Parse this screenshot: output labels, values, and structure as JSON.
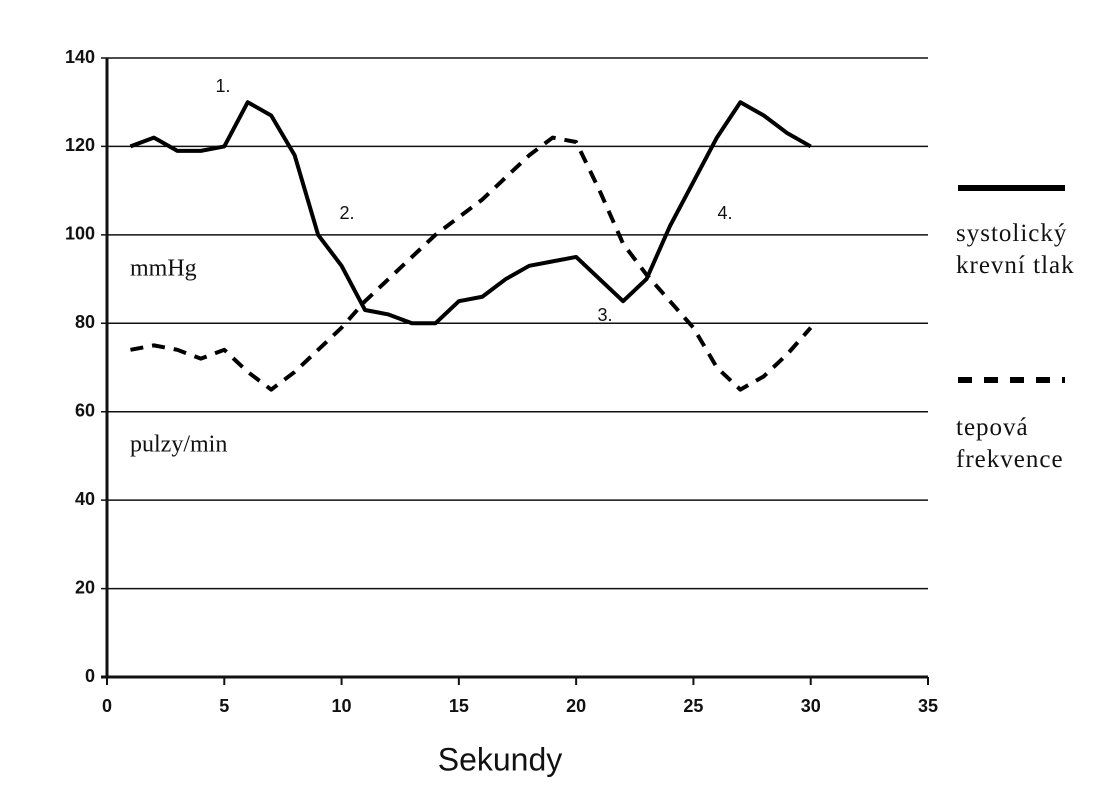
{
  "chart_data": {
    "type": "line",
    "x": [
      1,
      2,
      3,
      4,
      5,
      6,
      7,
      8,
      9,
      10,
      11,
      12,
      13,
      14,
      15,
      16,
      17,
      18,
      19,
      20,
      21,
      22,
      23,
      24,
      25,
      26,
      27,
      28,
      29,
      30
    ],
    "series": [
      {
        "name": "systolický krevní tlak",
        "color": "#000000",
        "line_style": "solid",
        "values": [
          120,
          122,
          119,
          119,
          120,
          130,
          127,
          118,
          100,
          93,
          83,
          82,
          80,
          80,
          85,
          86,
          90,
          93,
          94,
          95,
          90,
          85,
          90,
          102,
          112,
          122,
          130,
          127,
          123,
          120
        ]
      },
      {
        "name": "tepová frekvence",
        "color": "#000000",
        "line_style": "dashed",
        "values": [
          74,
          75,
          74,
          72,
          74,
          69,
          65,
          69,
          74,
          79,
          85,
          90,
          95,
          100,
          104,
          108,
          113,
          118,
          122,
          121,
          110,
          98,
          91,
          85,
          79,
          70,
          65,
          68,
          73,
          79
        ]
      }
    ],
    "xlabel": "Sekundy",
    "annotations": [
      "1.",
      "2.",
      "3.",
      "4.",
      "mmHg",
      "pulzy/min"
    ],
    "xlim": [
      0,
      35
    ],
    "xticks": [
      0,
      5,
      10,
      15,
      20,
      25,
      30,
      35
    ],
    "ylim": [
      0,
      140
    ],
    "yticks": [
      0,
      20,
      40,
      60,
      80,
      100,
      120,
      140
    ],
    "grid": true,
    "legend": "right"
  }
}
